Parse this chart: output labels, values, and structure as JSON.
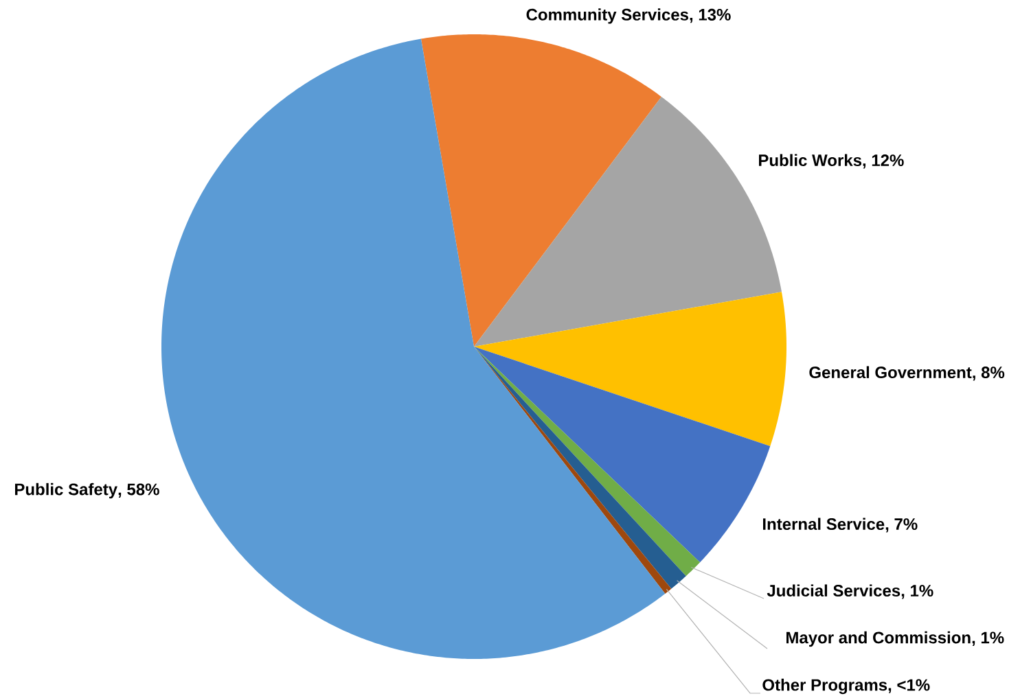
{
  "chart_data": {
    "type": "pie",
    "categories": [
      "Community Services",
      "Public Works",
      "General Government",
      "Internal Service",
      "Judicial Services",
      "Mayor and Commission",
      "Other Programs",
      "Public Safety"
    ],
    "values": [
      13,
      12,
      8,
      7,
      1,
      1,
      0.4,
      58
    ],
    "value_labels": [
      ", 13%",
      ", 12%",
      ", 8%",
      ", 7%",
      ", 1%",
      ", 1%",
      ", <1%",
      ", 58%"
    ],
    "colors": [
      "#ed7d31",
      "#a5a5a5",
      "#ffc000",
      "#4472c4",
      "#70ad47",
      "#255e91",
      "#9e480e",
      "#5b9bd5"
    ]
  }
}
